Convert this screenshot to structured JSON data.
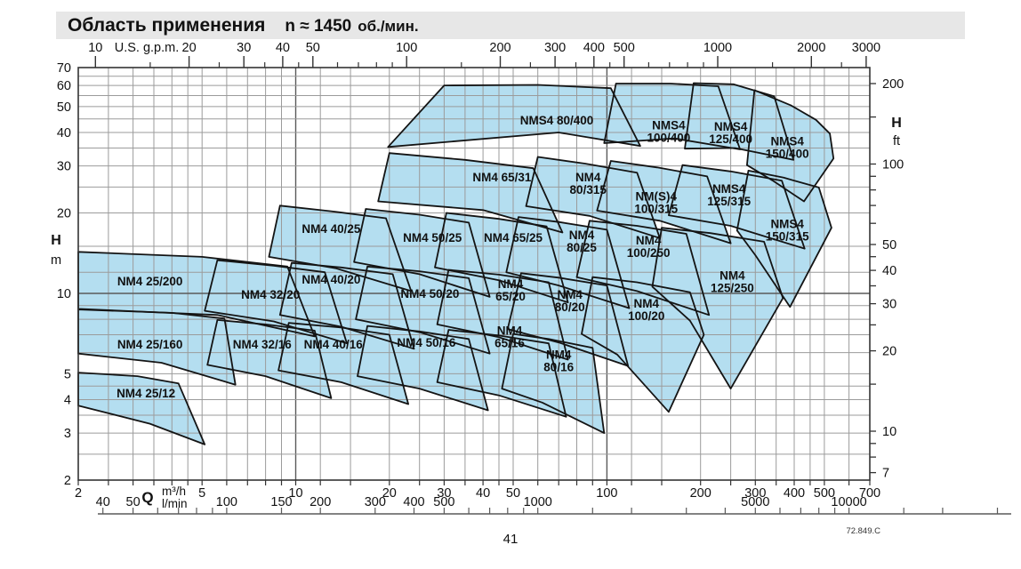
{
  "title": {
    "main": "Область применения",
    "speed": "n ≈ 1450",
    "unit": "об./мин."
  },
  "footer": {
    "page": "41",
    "doc_ref": "72.849.C"
  },
  "colors": {
    "region_fill": "#b4def0",
    "region_stroke": "#141414",
    "grid_minor": "#9b9b9b",
    "grid_major": "#5a5a5a",
    "axis_line": "#333333",
    "title_bar_bg": "#e7e7e7",
    "text": "#111111"
  },
  "chart_data": {
    "type": "area",
    "title": "Область применения n ≈ 1450 об./мин.",
    "scale": "log-log",
    "x_axis_bottom": {
      "label": "Q",
      "unit_primary": "m³/h",
      "unit_secondary": "l/min",
      "range_m3h": [
        2,
        700
      ],
      "tick_labels_m3h": [
        2,
        5,
        10,
        20,
        30,
        40,
        50,
        100,
        200,
        300,
        400,
        500,
        700
      ],
      "grid_values_m3h": [
        2,
        2.5,
        3,
        3.5,
        4,
        4.5,
        5,
        6,
        7,
        8,
        9,
        10,
        12,
        15,
        20,
        25,
        30,
        35,
        40,
        45,
        50,
        60,
        70,
        80,
        90,
        100,
        120,
        150,
        200,
        250,
        300,
        350,
        400,
        450,
        500,
        600,
        700
      ],
      "tick_labels_lmin": [
        40,
        50,
        100,
        150,
        200,
        300,
        400,
        500,
        1000,
        5000,
        10000
      ],
      "tick_marks_lmin": [
        40,
        50,
        60,
        70,
        80,
        90,
        100,
        150,
        200,
        300,
        400,
        500,
        600,
        700,
        800,
        900,
        1000,
        1500,
        2000,
        3000,
        4000,
        5000,
        6000,
        7000,
        8000,
        9000,
        10000,
        15000,
        20000,
        30000
      ]
    },
    "x_axis_top": {
      "label": "U.S. g.p.m.",
      "tick_labels_gpm": [
        10,
        20,
        30,
        40,
        50,
        100,
        200,
        300,
        400,
        500,
        1000,
        2000,
        3000
      ],
      "tick_marks_minor_gpm": [
        15,
        25,
        35,
        45,
        60,
        70,
        80,
        90,
        150,
        250,
        350,
        450,
        600,
        700,
        800,
        900,
        1500,
        2500
      ]
    },
    "y_axis_left": {
      "label": "H",
      "unit": "m",
      "range_m": [
        2,
        70
      ],
      "tick_labels_m": [
        2,
        3,
        4,
        5,
        10,
        20,
        30,
        40,
        50,
        60,
        70
      ],
      "grid_values_m": [
        2,
        2.5,
        3,
        3.5,
        4,
        4.5,
        5,
        6,
        7,
        8,
        9,
        10,
        12,
        15,
        20,
        25,
        30,
        35,
        40,
        45,
        50,
        55,
        60,
        65,
        70
      ]
    },
    "y_axis_right": {
      "label": "H",
      "unit": "ft",
      "tick_labels_ft": [
        7,
        10,
        20,
        30,
        40,
        50,
        100,
        200
      ],
      "tick_marks_ft": [
        7,
        8,
        9,
        10,
        15,
        20,
        25,
        30,
        35,
        40,
        45,
        50,
        60,
        70,
        80,
        90,
        100,
        150,
        200
      ]
    },
    "unit_conversions": {
      "us_gpm_per_m3h": 4.4029,
      "lmin_per_m3h": 16.6667,
      "m_per_ft": 0.3048
    },
    "regions": [
      {
        "name": "NM4 25/12",
        "label": [
          "NM4 25/12"
        ],
        "label_at": [
          3.3,
          4.2
        ],
        "points": [
          [
            2,
            5.05
          ],
          [
            3.1,
            4.9
          ],
          [
            4.2,
            4.6
          ],
          [
            5.1,
            2.72
          ],
          [
            3.4,
            3.25
          ],
          [
            2,
            3.8
          ]
        ]
      },
      {
        "name": "NM4 25/160",
        "label": [
          "NM4 25/160"
        ],
        "label_at": [
          3.4,
          6.4
        ],
        "points": [
          [
            2,
            8.7
          ],
          [
            4,
            8.45
          ],
          [
            5.9,
            8.05
          ],
          [
            6.4,
            4.55
          ],
          [
            3.7,
            5.5
          ],
          [
            2,
            5.95
          ]
        ]
      },
      {
        "name": "NM4 32/16",
        "label": [
          "NM4 32/16"
        ],
        "label_at": [
          7.8,
          6.4
        ],
        "points": [
          [
            5.6,
            7.95
          ],
          [
            8,
            7.65
          ],
          [
            11.5,
            7.25
          ],
          [
            13,
            4.05
          ],
          [
            8,
            4.9
          ],
          [
            5.2,
            5.4
          ]
        ]
      },
      {
        "name": "NM4 40/16",
        "label": [
          "NM4 40/16"
        ],
        "label_at": [
          13.2,
          6.4
        ],
        "points": [
          [
            9.5,
            7.75
          ],
          [
            14,
            7.45
          ],
          [
            20,
            7.0
          ],
          [
            23,
            3.85
          ],
          [
            14,
            4.65
          ],
          [
            8.8,
            5.15
          ]
        ]
      },
      {
        "name": "NM4 50/16",
        "label": [
          "NM4 50/16"
        ],
        "label_at": [
          26.3,
          6.5
        ],
        "points": [
          [
            17,
            7.55
          ],
          [
            25,
            7.2
          ],
          [
            36,
            6.75
          ],
          [
            41.5,
            3.65
          ],
          [
            25,
            4.4
          ],
          [
            15.8,
            4.9
          ]
        ]
      },
      {
        "name": "NM4 65/16",
        "label": [
          "NM4",
          "65/16"
        ],
        "label_at": [
          48.7,
          6.9
        ],
        "points": [
          [
            31,
            7.3
          ],
          [
            45,
            6.95
          ],
          [
            65,
            6.5
          ],
          [
            74,
            3.45
          ],
          [
            45,
            4.15
          ],
          [
            28.5,
            4.65
          ]
        ]
      },
      {
        "name": "NM4 80/16",
        "label": [
          "NM4",
          "80/16"
        ],
        "label_at": [
          70,
          5.6
        ],
        "points": [
          [
            50,
            7.05
          ],
          [
            65,
            6.75
          ],
          [
            90,
            6.25
          ],
          [
            98,
            3.0
          ],
          [
            62,
            3.9
          ],
          [
            46,
            4.4
          ]
        ]
      },
      {
        "name": "NM4 25/200",
        "label": [
          "NM4 25/200"
        ],
        "label_at": [
          3.4,
          11
        ],
        "points": [
          [
            2,
            14.3
          ],
          [
            5,
            13.7
          ],
          [
            9.4,
            12.6
          ],
          [
            11.5,
            6.9
          ],
          [
            5.6,
            8.3
          ],
          [
            2,
            8.75
          ]
        ]
      },
      {
        "name": "NM4 32/20",
        "label": [
          "NM4 32/20"
        ],
        "label_at": [
          8.3,
          9.8
        ],
        "points": [
          [
            5.6,
            13.3
          ],
          [
            8.5,
            12.7
          ],
          [
            12.4,
            12.0
          ],
          [
            14.6,
            6.5
          ],
          [
            8.5,
            7.85
          ],
          [
            5.1,
            8.6
          ]
        ]
      },
      {
        "name": "NM4 40/20",
        "label": [
          "NM4 40/20"
        ],
        "label_at": [
          13,
          11.2
        ],
        "points": [
          [
            9.7,
            13.0
          ],
          [
            14,
            12.5
          ],
          [
            20.5,
            11.8
          ],
          [
            24,
            6.2
          ],
          [
            14,
            7.5
          ],
          [
            8.9,
            8.3
          ]
        ]
      },
      {
        "name": "NM4 50/20",
        "label": [
          "NM4 50/20"
        ],
        "label_at": [
          27,
          9.9
        ],
        "points": [
          [
            17,
            12.6
          ],
          [
            25,
            12.1
          ],
          [
            36,
            11.4
          ],
          [
            42,
            5.95
          ],
          [
            25,
            7.15
          ],
          [
            15.6,
            8.0
          ]
        ]
      },
      {
        "name": "NM4 65/20",
        "label": [
          "NM4",
          "65/20"
        ],
        "label_at": [
          49,
          10.3
        ],
        "points": [
          [
            31,
            12.25
          ],
          [
            45,
            11.75
          ],
          [
            65,
            11.0
          ],
          [
            75,
            5.65
          ],
          [
            45,
            6.85
          ],
          [
            28.5,
            7.65
          ]
        ]
      },
      {
        "name": "NM4 80/20",
        "label": [
          "NM4",
          "80/20"
        ],
        "label_at": [
          76,
          9.4
        ],
        "points": [
          [
            53,
            11.9
          ],
          [
            70,
            11.45
          ],
          [
            100,
            10.7
          ],
          [
            117,
            5.35
          ],
          [
            70,
            6.55
          ],
          [
            48,
            7.35
          ]
        ]
      },
      {
        "name": "NM4 100/20",
        "label": [
          "NM4",
          "100/20"
        ],
        "label_at": [
          134,
          8.7
        ],
        "points": [
          [
            90,
            11.5
          ],
          [
            125,
            11.0
          ],
          [
            185,
            10.1
          ],
          [
            205,
            7.0
          ],
          [
            158,
            3.6
          ],
          [
            108,
            5.9
          ],
          [
            83,
            7.05
          ]
        ]
      },
      {
        "name": "NM4 40/25",
        "label": [
          "NM4 40/25"
        ],
        "label_at": [
          13,
          17.3
        ],
        "points": [
          [
            8.9,
            21.3
          ],
          [
            13,
            20.3
          ],
          [
            19.5,
            19.1
          ],
          [
            23.5,
            10.2
          ],
          [
            13.5,
            12.4
          ],
          [
            8.2,
            13.7
          ]
        ]
      },
      {
        "name": "NM4 50/25",
        "label": [
          "NM4 50/25"
        ],
        "label_at": [
          27.5,
          16
        ],
        "points": [
          [
            16.8,
            20.7
          ],
          [
            25,
            19.7
          ],
          [
            36,
            18.4
          ],
          [
            42,
            9.7
          ],
          [
            25,
            11.8
          ],
          [
            15.4,
            13.1
          ]
        ]
      },
      {
        "name": "NM4 65/25",
        "label": [
          "NM4 65/25"
        ],
        "label_at": [
          50,
          16
        ],
        "points": [
          [
            30.5,
            20.0
          ],
          [
            45,
            19.0
          ],
          [
            64,
            17.8
          ],
          [
            75,
            9.25
          ],
          [
            45,
            11.2
          ],
          [
            28,
            12.5
          ]
        ]
      },
      {
        "name": "NM4 80/25",
        "label": [
          "NM4",
          "80/25"
        ],
        "label_at": [
          83,
          15.7
        ],
        "points": [
          [
            52,
            19.3
          ],
          [
            70,
            18.5
          ],
          [
            100,
            17.3
          ],
          [
            118,
            8.8
          ],
          [
            70,
            10.7
          ],
          [
            47.5,
            12.0
          ]
        ]
      },
      {
        "name": "NM4 100/250",
        "label": [
          "NM4",
          "100/250"
        ],
        "label_at": [
          136,
          15.0
        ],
        "points": [
          [
            88,
            18.7
          ],
          [
            125,
            17.9
          ],
          [
            180,
            16.7
          ],
          [
            213,
            8.3
          ],
          [
            125,
            10.2
          ],
          [
            80,
            11.5
          ]
        ]
      },
      {
        "name": "NM4 125/250",
        "label": [
          "NM4",
          "125/250"
        ],
        "label_at": [
          253,
          11.1
        ],
        "points": [
          [
            150,
            17.6
          ],
          [
            215,
            16.8
          ],
          [
            320,
            15.6
          ],
          [
            368,
            9.6
          ],
          [
            250,
            4.4
          ],
          [
            185,
            7.9
          ],
          [
            140,
            10.6
          ]
        ]
      },
      {
        "name": "NM4 65/31",
        "label": [
          "NM4 65/31"
        ],
        "label_at": [
          46,
          27
        ],
        "points": [
          [
            20,
            33.5
          ],
          [
            35,
            31.6
          ],
          [
            58,
            29.4
          ],
          [
            72,
            16.9
          ],
          [
            40,
            20.5
          ],
          [
            18.4,
            22.1
          ]
        ]
      },
      {
        "name": "NM4 80/315",
        "label": [
          "NM4",
          "80/315"
        ],
        "label_at": [
          87,
          25.9
        ],
        "points": [
          [
            60,
            32.4
          ],
          [
            85,
            30.6
          ],
          [
            125,
            28.3
          ],
          [
            148,
            16.1
          ],
          [
            88,
            19.5
          ],
          [
            55,
            21.2
          ]
        ]
      },
      {
        "name": "NM(S)4 100/315",
        "label": [
          "NM(S)4",
          "100/315"
        ],
        "label_at": [
          144,
          21.9
        ],
        "points": [
          [
            103,
            31.3
          ],
          [
            145,
            29.6
          ],
          [
            210,
            27.4
          ],
          [
            250,
            15.4
          ],
          [
            148,
            18.7
          ],
          [
            93,
            20.4
          ]
        ]
      },
      {
        "name": "NMS4 125/315",
        "label": [
          "NMS4",
          "125/315"
        ],
        "label_at": [
          247,
          23.4
        ],
        "points": [
          [
            175,
            30.2
          ],
          [
            250,
            28.6
          ],
          [
            365,
            26.4
          ],
          [
            432,
            14.7
          ],
          [
            250,
            17.9
          ],
          [
            158,
            19.6
          ]
        ]
      },
      {
        "name": "NMS4 150/315",
        "label": [
          "NMS4",
          "150/315"
        ],
        "label_at": [
          380,
          17.3
        ],
        "points": [
          [
            285,
            28.8
          ],
          [
            370,
            27.1
          ],
          [
            480,
            24.9
          ],
          [
            527,
            17.6
          ],
          [
            388,
            8.9
          ],
          [
            300,
            13.9
          ],
          [
            262,
            17.2
          ]
        ]
      },
      {
        "name": "NMS4 80/400",
        "label": [
          "NMS4 80/400"
        ],
        "label_at": [
          69,
          44
        ],
        "points": [
          [
            30,
            60
          ],
          [
            60,
            60.3
          ],
          [
            103,
            58.6
          ],
          [
            128,
            35.6
          ],
          [
            70,
            40
          ],
          [
            19.8,
            35.3
          ]
        ]
      },
      {
        "name": "NMS4 100/400",
        "label": [
          "NMS4",
          "100/400"
        ],
        "label_at": [
          158,
          40.5
        ],
        "points": [
          [
            107,
            61
          ],
          [
            160,
            61
          ],
          [
            228,
            59.6
          ],
          [
            268,
            34.6
          ],
          [
            165,
            38
          ],
          [
            98,
            36.5
          ]
        ]
      },
      {
        "name": "NMS4 125/400",
        "label": [
          "NMS4",
          "125/400"
        ],
        "label_at": [
          250,
          40
        ],
        "points": [
          [
            190,
            61.2
          ],
          [
            255,
            60.6
          ],
          [
            345,
            54.6
          ],
          [
            398,
            31.6
          ],
          [
            258,
            35
          ],
          [
            178,
            34.8
          ]
        ]
      },
      {
        "name": "NMS4 150/400",
        "label": [
          "NMS4",
          "150/400"
        ],
        "label_at": [
          380,
          35.3
        ],
        "points": [
          [
            298,
            57.6
          ],
          [
            390,
            50.6
          ],
          [
            470,
            44.6
          ],
          [
            521,
            39.6
          ],
          [
            535,
            32
          ],
          [
            430,
            22.1
          ],
          [
            340,
            26.5
          ],
          [
            282,
            30.2
          ]
        ]
      }
    ]
  }
}
